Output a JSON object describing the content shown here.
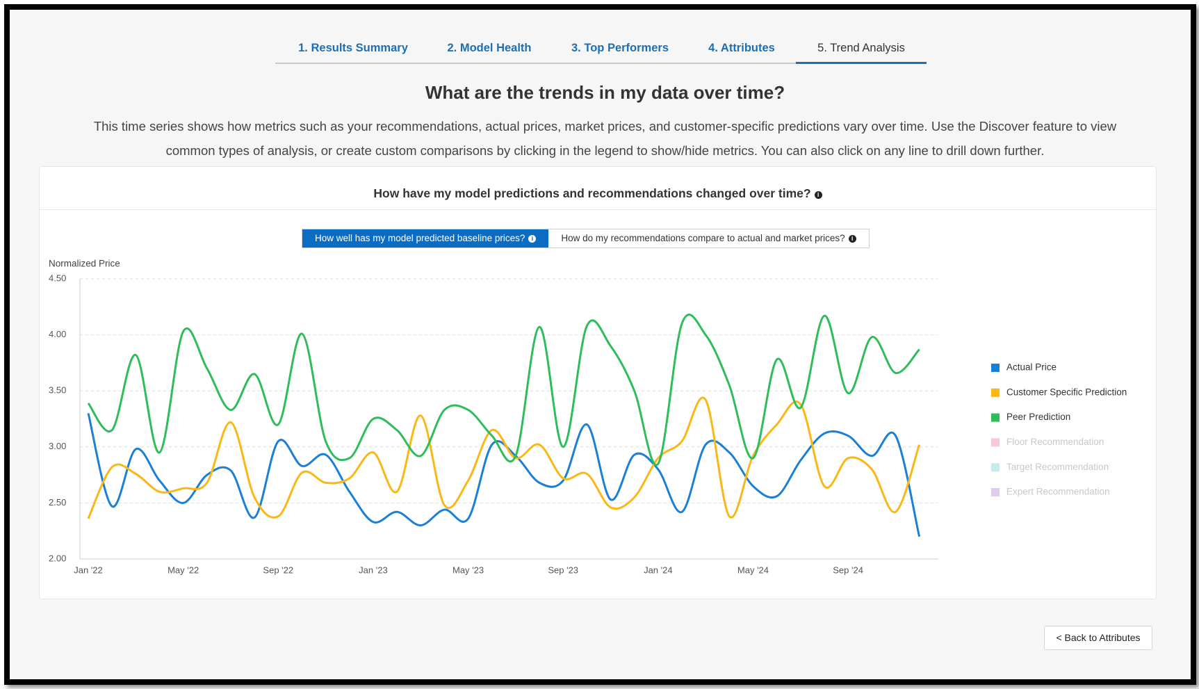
{
  "tabs": [
    "1. Results Summary",
    "2. Model Health",
    "3. Top Performers",
    "4. Attributes",
    "5. Trend Analysis"
  ],
  "active_tab": 4,
  "heading": "What are the trends in my data over time?",
  "description": [
    "This time series shows how metrics such as your recommendations, actual prices, market prices, and customer-specific predictions vary over time. Use the Discover feature to view",
    "common types of analysis, or create custom comparisons by clicking in the legend to show/hide metrics. You can also click on any line to drill down further."
  ],
  "card_title": "How have my model predictions and recommendations changed over time?",
  "toggles": [
    "How well has my model predicted baseline prices?",
    "How do my recommendations compare to actual and market prices?"
  ],
  "active_toggle": 0,
  "back_button": "< Back to Attributes",
  "chart_data": {
    "type": "line",
    "ylabel": "Normalized Price",
    "categories": [
      "Jan '22",
      null,
      null,
      null,
      "May '22",
      null,
      null,
      null,
      "Sep '22",
      null,
      null,
      null,
      "Jan '23",
      null,
      null,
      null,
      "May '23",
      null,
      null,
      null,
      "Sep '23",
      null,
      null,
      null,
      "Jan '24",
      null,
      null,
      null,
      "May '24",
      null,
      null,
      null,
      "Sep '24",
      null,
      null,
      null
    ],
    "ylim": [
      2,
      4.5
    ],
    "yticks": [
      {
        "value": 2,
        "label": "2.00"
      },
      {
        "value": 2.5,
        "label": "2.50"
      },
      {
        "value": 3,
        "label": "3.00"
      },
      {
        "value": 3.5,
        "label": "3.50"
      },
      {
        "value": 4,
        "label": "4.00"
      },
      {
        "value": 4.5,
        "label": "4.50"
      }
    ],
    "grid": true,
    "series": [
      {
        "name": "Actual Price",
        "color": "#1a7fd6",
        "values": [
          3.3,
          2.47,
          2.98,
          2.7,
          2.5,
          2.75,
          2.79,
          2.37,
          3.05,
          2.83,
          2.93,
          2.6,
          2.33,
          2.42,
          2.3,
          2.44,
          2.36,
          3.02,
          2.92,
          2.68,
          2.7,
          3.2,
          2.53,
          2.93,
          2.8,
          2.42,
          3.02,
          2.95,
          2.65,
          2.56,
          2.88,
          3.12,
          3.1,
          2.92,
          3.1,
          2.2
        ]
      },
      {
        "name": "Customer Specific Prediction",
        "color": "#fbb714",
        "values": [
          2.36,
          2.82,
          2.76,
          2.6,
          2.63,
          2.68,
          3.22,
          2.55,
          2.38,
          2.77,
          2.68,
          2.72,
          2.95,
          2.6,
          3.28,
          2.48,
          2.7,
          3.15,
          2.9,
          3.02,
          2.72,
          2.76,
          2.46,
          2.55,
          2.9,
          3.05,
          3.42,
          2.38,
          2.92,
          3.2,
          3.38,
          2.65,
          2.9,
          2.8,
          2.42,
          3.02
        ]
      },
      {
        "name": "Peer Prediction",
        "color": "#2dbd5a",
        "values": [
          3.39,
          3.15,
          3.82,
          2.95,
          4.03,
          3.7,
          3.33,
          3.65,
          3.2,
          4.01,
          3.05,
          2.9,
          3.25,
          3.15,
          2.92,
          3.33,
          3.33,
          3.1,
          2.92,
          4.07,
          3.0,
          4.08,
          3.9,
          3.5,
          2.85,
          4.1,
          4.0,
          3.55,
          2.9,
          3.78,
          3.35,
          4.17,
          3.48,
          3.98,
          3.66,
          3.87
        ]
      }
    ],
    "legend_hidden": [
      {
        "name": "Floor Recommendation",
        "color": "#f6c9da"
      },
      {
        "name": "Target Recommendation",
        "color": "#c9e9f0"
      },
      {
        "name": "Expert Recommendation",
        "color": "#dfcbea"
      }
    ]
  }
}
